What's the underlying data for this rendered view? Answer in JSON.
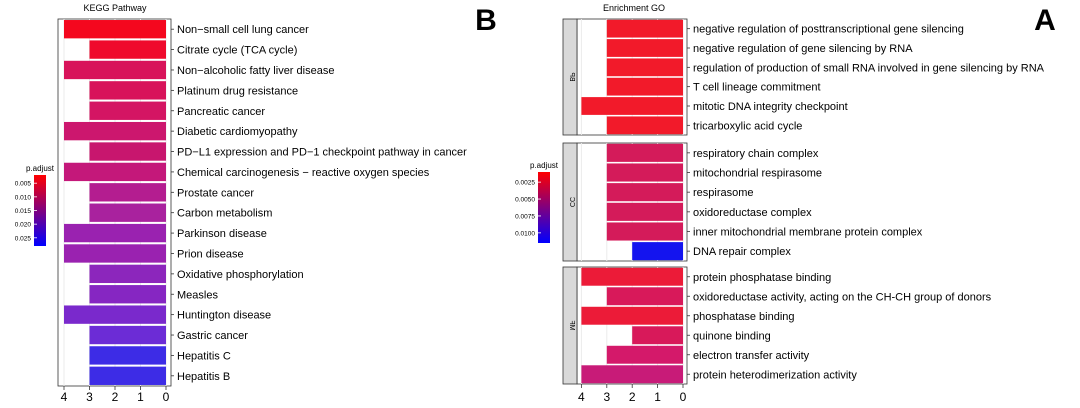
{
  "panels": [
    {
      "letter": "A",
      "title": "Enrichment GO",
      "legend_title": "p.adjust",
      "legend_ticks": [
        "0.0025",
        "0.0050",
        "0.0075",
        "0.0100"
      ],
      "legend_colors": [
        "#ff0000",
        "#0000ff"
      ],
      "xticks": [
        0,
        1,
        2,
        3,
        4
      ]
    },
    {
      "letter": "B",
      "title": "KEGG Pathway",
      "legend_title": "p.adjust",
      "legend_ticks": [
        "0.005",
        "0.010",
        "0.015",
        "0.020",
        "0.025"
      ],
      "legend_colors": [
        "#ff0000",
        "#0000ff"
      ],
      "xticks": [
        0,
        1,
        2,
        3,
        4
      ]
    }
  ],
  "chart_data": [
    {
      "type": "bar",
      "orientation": "horizontal",
      "title": "Enrichment GO",
      "mirrored": true,
      "xlim": [
        0,
        4
      ],
      "color_scale": "p.adjust",
      "groups": [
        {
          "name": "BP",
          "categories": [
            "negative regulation of posttranscriptional gene silencing",
            "negative regulation of gene silencing by RNA",
            "regulation of production of small RNA involved in gene silencing by RNA",
            "T cell lineage commitment",
            "mitotic DNA integrity checkpoint",
            "tricarboxylic acid cycle"
          ],
          "values": [
            3,
            3,
            3,
            3,
            4,
            3
          ],
          "colors": [
            "#f21a2a",
            "#f21a2a",
            "#f21a2a",
            "#f21a2a",
            "#f21a2a",
            "#f21a2a"
          ]
        },
        {
          "name": "CC",
          "categories": [
            "respiratory chain complex",
            "mitochondrial respirasome",
            "respirasome",
            "oxidoreductase complex",
            "inner mitochondrial membrane protein complex",
            "DNA repair complex"
          ],
          "values": [
            3,
            3,
            3,
            3,
            3,
            2
          ],
          "colors": [
            "#d41b5a",
            "#d41b5a",
            "#d41b5a",
            "#d41b5a",
            "#d41b5a",
            "#1414ef"
          ]
        },
        {
          "name": "MF",
          "categories": [
            "protein phosphatase binding",
            "oxidoreductase activity, acting on the CH-CH group of donors",
            "phosphatase binding",
            "quinone binding",
            "electron transfer activity",
            "protein heterodimerization activity"
          ],
          "values": [
            4,
            3,
            4,
            2,
            3,
            4
          ],
          "colors": [
            "#ec1b38",
            "#d8195a",
            "#ec1b38",
            "#d8195a",
            "#d4196a",
            "#c81b78"
          ]
        }
      ]
    },
    {
      "type": "bar",
      "orientation": "horizontal",
      "title": "KEGG Pathway",
      "mirrored": true,
      "xlim": [
        0,
        4
      ],
      "color_scale": "p.adjust",
      "categories": [
        "Non−small cell lung cancer",
        "Citrate cycle (TCA cycle)",
        "Non−alcoholic fatty liver disease",
        "Platinum drug resistance",
        "Pancreatic cancer",
        "Diabetic cardiomyopathy",
        "PD−L1 expression and PD−1 checkpoint pathway in cancer",
        "Chemical carcinogenesis − reactive oxygen species",
        "Prostate cancer",
        "Carbon metabolism",
        "Parkinson disease",
        "Prion disease",
        "Oxidative phosphorylation",
        "Measles",
        "Huntington disease",
        "Gastric cancer",
        "Hepatitis C",
        "Hepatitis B"
      ],
      "values": [
        4,
        3,
        4,
        3,
        3,
        4,
        3,
        4,
        3,
        3,
        4,
        4,
        3,
        3,
        4,
        3,
        3,
        3
      ],
      "colors": [
        "#f4071e",
        "#ef0a2c",
        "#d8135a",
        "#d8135a",
        "#d41563",
        "#cc176e",
        "#c8166e",
        "#c4187a",
        "#b41d90",
        "#a9229e",
        "#9a22b0",
        "#9a22b0",
        "#8c26bc",
        "#8626c2",
        "#7a29cc",
        "#6c2cd6",
        "#3d2ce6",
        "#3d2ce6"
      ]
    }
  ]
}
